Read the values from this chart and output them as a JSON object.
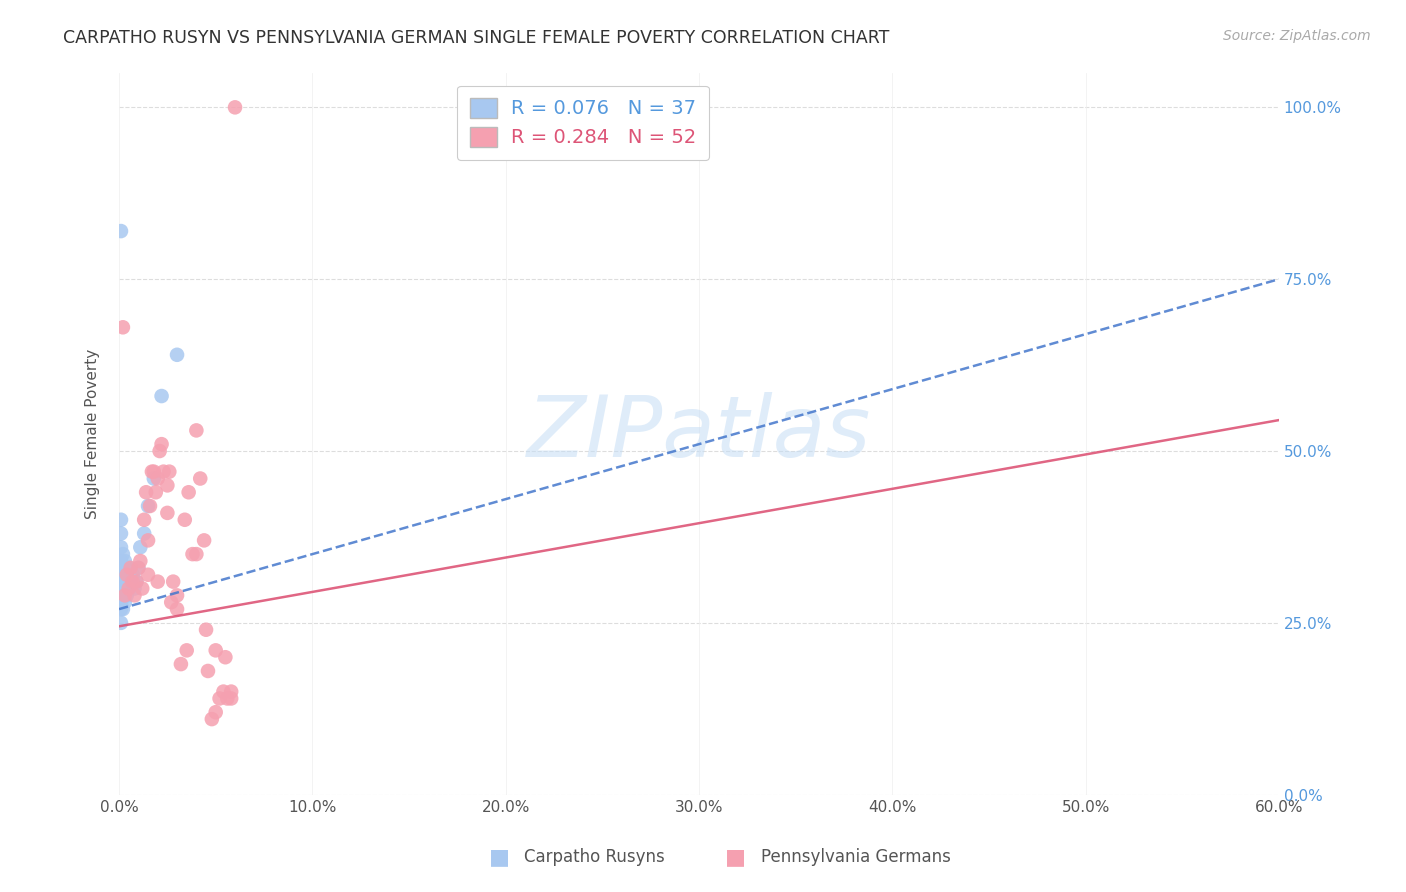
{
  "title": "CARPATHO RUSYN VS PENNSYLVANIA GERMAN SINGLE FEMALE POVERTY CORRELATION CHART",
  "source": "Source: ZipAtlas.com",
  "ylabel": "Single Female Poverty",
  "xlabel_ticks": [
    "0.0%",
    "10.0%",
    "20.0%",
    "30.0%",
    "40.0%",
    "50.0%",
    "60.0%"
  ],
  "ylabel_ticks": [
    "0.0%",
    "25.0%",
    "50.0%",
    "75.0%",
    "100.0%"
  ],
  "xlim": [
    0,
    0.6
  ],
  "ylim": [
    0,
    1.05
  ],
  "legend1_color": "#a8c8f0",
  "legend2_color": "#f5a0b0",
  "legend1_label": "Carpatho Rusyns",
  "legend2_label": "Pennsylvania Germans",
  "R1": 0.076,
  "N1": 37,
  "R2": 0.284,
  "N2": 52,
  "watermark": "ZIPatlas",
  "watermark_color": "#c5ddf5",
  "blue_dot_color": "#a8c8f0",
  "pink_dot_color": "#f5a0b0",
  "blue_line_color": "#4477cc",
  "pink_line_color": "#dd5577",
  "blue_line_intercept": 0.27,
  "blue_line_slope": 0.8,
  "pink_line_intercept": 0.245,
  "pink_line_slope": 0.5,
  "carpatho_x": [
    0.001,
    0.001,
    0.001,
    0.001,
    0.001,
    0.001,
    0.001,
    0.001,
    0.001,
    0.001,
    0.001,
    0.001,
    0.002,
    0.002,
    0.002,
    0.002,
    0.002,
    0.003,
    0.003,
    0.003,
    0.003,
    0.004,
    0.004,
    0.005,
    0.005,
    0.006,
    0.007,
    0.008,
    0.009,
    0.01,
    0.011,
    0.013,
    0.015,
    0.018,
    0.022,
    0.03,
    0.001
  ],
  "carpatho_y": [
    0.25,
    0.27,
    0.28,
    0.29,
    0.3,
    0.31,
    0.32,
    0.33,
    0.34,
    0.36,
    0.38,
    0.4,
    0.27,
    0.29,
    0.31,
    0.33,
    0.35,
    0.28,
    0.3,
    0.32,
    0.34,
    0.29,
    0.32,
    0.3,
    0.33,
    0.31,
    0.32,
    0.3,
    0.31,
    0.33,
    0.36,
    0.38,
    0.42,
    0.46,
    0.58,
    0.64,
    0.82
  ],
  "penn_x": [
    0.003,
    0.004,
    0.005,
    0.006,
    0.007,
    0.008,
    0.009,
    0.01,
    0.011,
    0.012,
    0.013,
    0.014,
    0.015,
    0.016,
    0.017,
    0.018,
    0.019,
    0.02,
    0.021,
    0.022,
    0.023,
    0.025,
    0.026,
    0.027,
    0.028,
    0.03,
    0.032,
    0.034,
    0.036,
    0.038,
    0.04,
    0.042,
    0.044,
    0.046,
    0.048,
    0.05,
    0.052,
    0.054,
    0.056,
    0.058,
    0.015,
    0.02,
    0.025,
    0.03,
    0.035,
    0.04,
    0.045,
    0.05,
    0.055,
    0.058,
    0.06,
    0.002
  ],
  "penn_y": [
    0.29,
    0.32,
    0.3,
    0.33,
    0.31,
    0.29,
    0.31,
    0.33,
    0.34,
    0.3,
    0.4,
    0.44,
    0.32,
    0.42,
    0.47,
    0.47,
    0.44,
    0.46,
    0.5,
    0.51,
    0.47,
    0.41,
    0.47,
    0.28,
    0.31,
    0.29,
    0.19,
    0.4,
    0.44,
    0.35,
    0.35,
    0.46,
    0.37,
    0.18,
    0.11,
    0.12,
    0.14,
    0.15,
    0.14,
    0.14,
    0.37,
    0.31,
    0.45,
    0.27,
    0.21,
    0.53,
    0.24,
    0.21,
    0.2,
    0.15,
    1.0,
    0.68
  ]
}
